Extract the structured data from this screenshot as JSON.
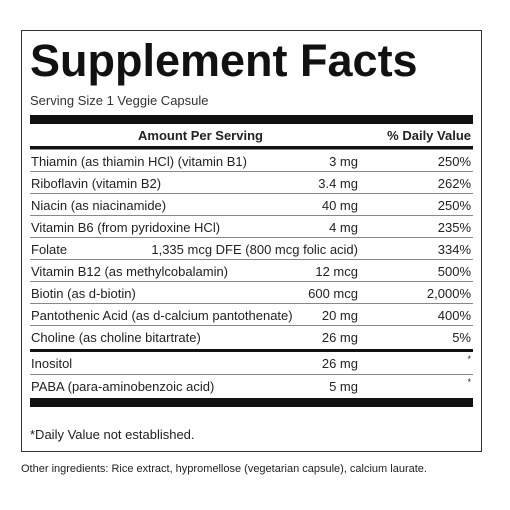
{
  "label": {
    "title": "Supplement Facts",
    "serving_size": "Serving Size 1 Veggie Capsule",
    "header_amount": "Amount Per Serving",
    "header_dv": "% Daily Value",
    "rows": [
      {
        "name": "Thiamin (as thiamin HCl) (vitamin B1)",
        "amount": "3 mg",
        "dv": "250%"
      },
      {
        "name": "Riboflavin (vitamin B2)",
        "amount": "3.4 mg",
        "dv": "262%"
      },
      {
        "name": "Niacin (as niacinamide)",
        "amount": "40 mg",
        "dv": "250%"
      },
      {
        "name": "Vitamin B6 (from pyridoxine HCl)",
        "amount": "4 mg",
        "dv": "235%"
      },
      {
        "name": "Folate",
        "amount": "1,335 mcg DFE (800 mcg folic acid)",
        "dv": "334%"
      },
      {
        "name": "Vitamin B12 (as methylcobalamin)",
        "amount": "12 mcg",
        "dv": "500%"
      },
      {
        "name": "Biotin (as d-biotin)",
        "amount": "600 mcg",
        "dv": "2,000%"
      },
      {
        "name": "Pantothenic Acid (as d-calcium pantothenate)",
        "amount": "20 mg",
        "dv": "400%"
      },
      {
        "name": "Choline (as choline bitartrate)",
        "amount": "26 mg",
        "dv": "5%"
      }
    ],
    "rows_no_dv": [
      {
        "name": "Inositol",
        "amount": "26 mg",
        "dv": "*"
      },
      {
        "name": "PABA (para-aminobenzoic acid)",
        "amount": "5 mg",
        "dv": "*"
      }
    ],
    "footnote": "*Daily Value not established."
  },
  "other_ingredients": "Other ingredients: Rice extract, hypromellose (vegetarian capsule), calcium laurate."
}
